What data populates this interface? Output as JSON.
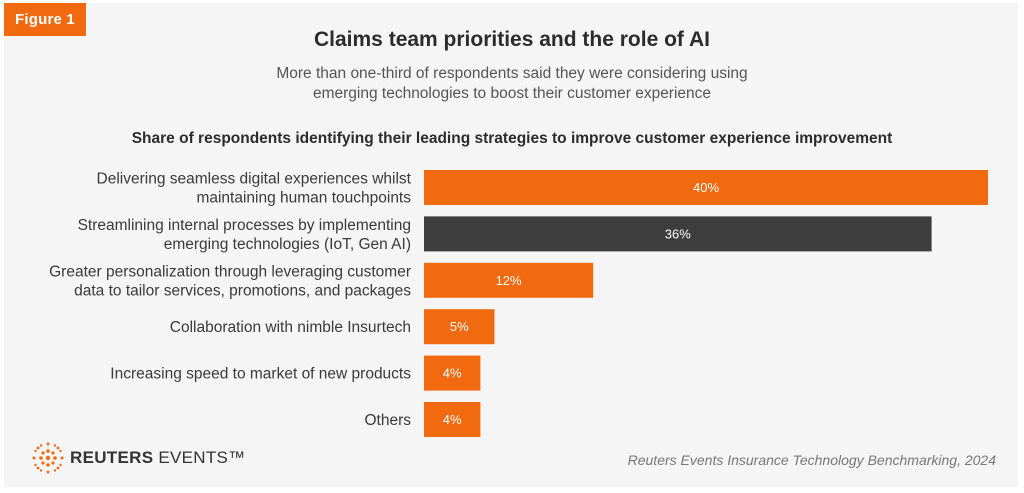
{
  "figure_label": "Figure 1",
  "title": "Claims team priorities and the role of AI",
  "subtitle": "More than one-third of respondents said they were considering using emerging technologies to boost their customer experience",
  "brand": {
    "name_bold": "REUTERS",
    "name_rest": " EVENTS™"
  },
  "source": "Reuters Events Insurance Technology Benchmarking, 2024",
  "colors": {
    "accent": "#f26a0f",
    "dark": "#3d3d3d"
  },
  "chart_data": {
    "type": "bar",
    "orientation": "horizontal",
    "title": "Share of respondents identifying their leading strategies to improve customer experience improvement",
    "categories": [
      [
        "Delivering seamless digital experiences whilst",
        "maintaining human touchpoints"
      ],
      [
        "Streamlining internal processes by implementing",
        "emerging technologies (IoT, Gen AI)"
      ],
      [
        "Greater personalization through leveraging customer",
        "data to tailor services, promotions, and packages"
      ],
      [
        "Collaboration with nimble Insurtech"
      ],
      [
        "Increasing speed to market of new products"
      ],
      [
        "Others"
      ]
    ],
    "values": [
      40,
      36,
      12,
      5,
      4,
      4
    ],
    "value_labels": [
      "40%",
      "36%",
      "12%",
      "5%",
      "4%",
      "4%"
    ],
    "bar_colors": [
      "#f26a0f",
      "#3d3d3d",
      "#f26a0f",
      "#f26a0f",
      "#f26a0f",
      "#f26a0f"
    ],
    "xlim": [
      0,
      40
    ]
  }
}
